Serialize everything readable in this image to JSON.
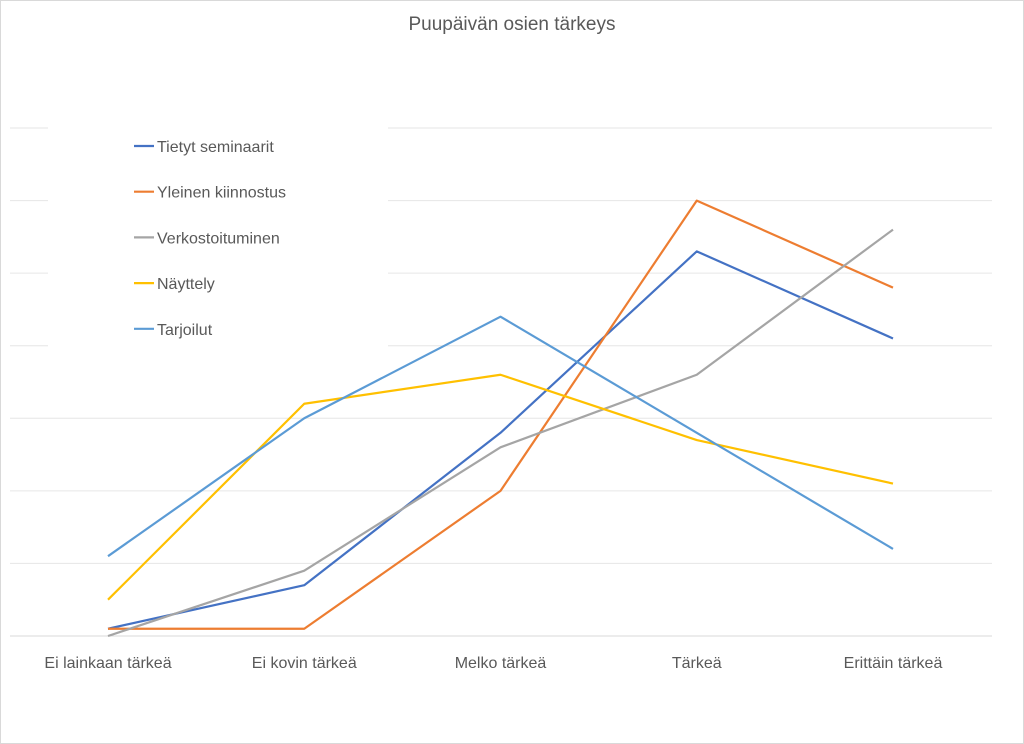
{
  "chart_data": {
    "type": "line",
    "title": "Puupäivän osien tärkeys",
    "xlabel": "",
    "ylabel": "",
    "categories": [
      "Ei lainkaan tärkeä",
      "Ei kovin tärkeä",
      "Melko tärkeä",
      "Tärkeä",
      "Erittäin tärkeä"
    ],
    "ylim": [
      0,
      70
    ],
    "grid": true,
    "legend_position": "top-left",
    "series": [
      {
        "name": "Tietyt seminaarit",
        "color": "#4472c4",
        "values": [
          1,
          7,
          28,
          53,
          41
        ]
      },
      {
        "name": "Yleinen kiinnostus",
        "color": "#ed7d31",
        "values": [
          1,
          1,
          20,
          60,
          48
        ]
      },
      {
        "name": "Verkostoituminen",
        "color": "#a5a5a5",
        "values": [
          0,
          9,
          26,
          36,
          56
        ]
      },
      {
        "name": "Näyttely",
        "color": "#ffc000",
        "values": [
          5,
          32,
          36,
          27,
          21
        ]
      },
      {
        "name": "Tarjoilut",
        "color": "#5b9bd5",
        "values": [
          11,
          30,
          44,
          28,
          12
        ]
      }
    ]
  }
}
